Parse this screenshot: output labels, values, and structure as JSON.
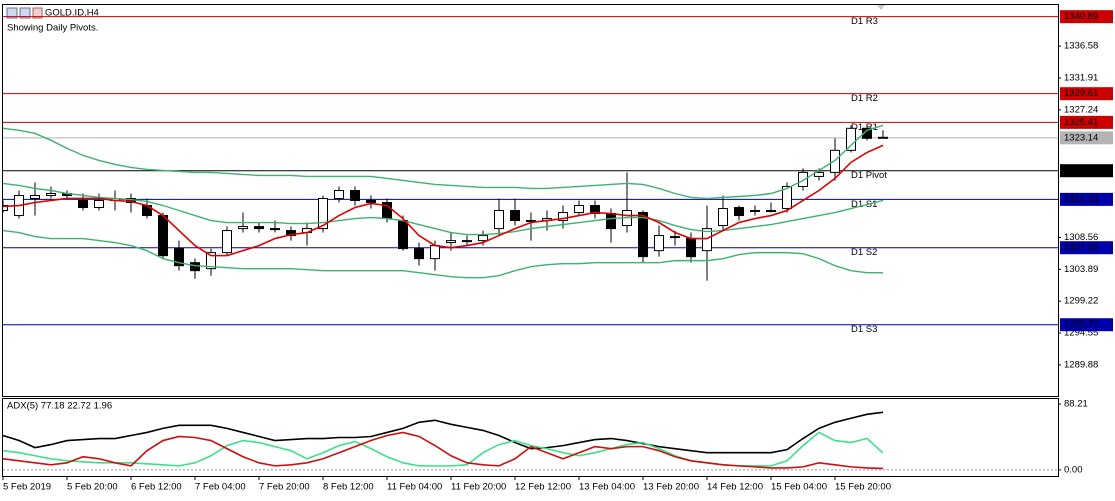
{
  "chart_data": [
    {
      "type": "candlestick",
      "title": "GOLD.ID,H4",
      "subtitle": "Showing Daily Pivots.",
      "categories": [
        "5 Feb 2019",
        null,
        null,
        null,
        "5 Feb 20:00",
        null,
        null,
        null,
        "6 Feb 12:00",
        null,
        null,
        null,
        "7 Feb 04:00",
        null,
        null,
        null,
        "7 Feb 20:00",
        null,
        null,
        null,
        "8 Feb 12:00",
        null,
        null,
        null,
        "11 Feb 04:00",
        null,
        null,
        null,
        "11 Feb 20:00",
        null,
        null,
        null,
        "12 Feb 12:00",
        null,
        null,
        null,
        "13 Feb 04:00",
        null,
        null,
        null,
        "13 Feb 20:00",
        null,
        null,
        null,
        "14 Feb 12:00",
        null,
        null,
        null,
        "15 Feb 04:00",
        null,
        null,
        null,
        "15 Feb 20:00",
        null,
        null,
        null
      ],
      "open": [
        1312.5,
        1311.76,
        1314.26,
        1314.7,
        1314.99,
        1313.97,
        1312.94,
        1313.97,
        1314.26,
        1313.23,
        1311.76,
        1306.92,
        1304.86,
        1303.98,
        1306.33,
        1309.85,
        1310.15,
        1309.85,
        1309.56,
        1309.27,
        1309.85,
        1314.26,
        1315.43,
        1313.97,
        1313.67,
        1311.03,
        1306.92,
        1305.45,
        1307.8,
        1308.09,
        1308.09,
        1309.85,
        1312.5,
        1311.03,
        1311.03,
        1311.03,
        1312.2,
        1313.23,
        1312.06,
        1310.3,
        1312.2,
        1306.62,
        1308.68,
        1308.39,
        1306.62,
        1310.3,
        1312.94,
        1312.5,
        1312.5,
        1312.79,
        1316.02,
        1317.49,
        1318.08,
        1321.31,
        1324.54,
        1323.22
      ],
      "high": [
        1313.97,
        1315.43,
        1316.61,
        1316.02,
        1315.43,
        1314.99,
        1314.99,
        1315.43,
        1314.99,
        1314.26,
        1312.2,
        1308.09,
        1305.45,
        1306.92,
        1310.15,
        1312.2,
        1310.74,
        1311.03,
        1310.15,
        1310.74,
        1314.7,
        1316.02,
        1316.02,
        1314.7,
        1314.26,
        1311.76,
        1307.8,
        1308.09,
        1309.27,
        1308.83,
        1309.56,
        1314.26,
        1314.26,
        1312.2,
        1312.5,
        1313.23,
        1313.97,
        1313.97,
        1312.79,
        1318.08,
        1312.5,
        1310.3,
        1309.56,
        1309.27,
        1313.23,
        1314.7,
        1313.23,
        1313.23,
        1313.67,
        1316.61,
        1318.67,
        1318.67,
        1323.07,
        1324.98,
        1324.98,
        1324.25
      ],
      "low": [
        1312.2,
        1311.32,
        1311.76,
        1314.26,
        1314.26,
        1312.5,
        1312.5,
        1312.5,
        1312.2,
        1311.32,
        1305.45,
        1303.69,
        1302.51,
        1302.95,
        1305.89,
        1309.27,
        1309.27,
        1309.27,
        1308.09,
        1307.36,
        1309.27,
        1313.67,
        1313.23,
        1312.79,
        1310.74,
        1306.62,
        1304.42,
        1303.69,
        1306.62,
        1307.36,
        1307.36,
        1308.83,
        1310.3,
        1308.09,
        1309.56,
        1309.85,
        1311.76,
        1311.32,
        1307.8,
        1309.27,
        1304.86,
        1305.74,
        1307.36,
        1304.86,
        1302.22,
        1309.56,
        1311.03,
        1311.76,
        1312.2,
        1312.2,
        1315.43,
        1316.9,
        1316.9,
        1321.01,
        1322.78,
        1323.07
      ],
      "close": [
        1313.23,
        1314.7,
        1314.7,
        1314.99,
        1314.7,
        1312.94,
        1313.97,
        1314.26,
        1313.67,
        1311.76,
        1305.89,
        1304.42,
        1303.69,
        1306.33,
        1309.56,
        1310.15,
        1309.85,
        1309.85,
        1308.83,
        1309.85,
        1314.26,
        1315.43,
        1313.97,
        1313.67,
        1311.32,
        1306.92,
        1305.45,
        1307.36,
        1308.09,
        1308.09,
        1308.83,
        1312.5,
        1311.03,
        1311.03,
        1311.32,
        1312.2,
        1313.23,
        1312.06,
        1309.85,
        1312.5,
        1305.74,
        1308.83,
        1308.68,
        1305.74,
        1309.85,
        1312.79,
        1311.76,
        1312.5,
        1312.5,
        1316.02,
        1318.08,
        1318.08,
        1321.31,
        1324.54,
        1323.07,
        1323.14
      ],
      "series": [
        {
          "color": "#3cb371",
          "values": [
            1324.54,
            1324.25,
            1323.8,
            1322.78,
            1321.6,
            1320.57,
            1319.84,
            1319.25,
            1318.81,
            1318.52,
            1318.37,
            1318.22,
            1318.08,
            1318.08,
            1317.93,
            1317.78,
            1317.64,
            1317.64,
            1317.64,
            1317.49,
            1317.49,
            1317.49,
            1317.49,
            1317.49,
            1317.2,
            1316.9,
            1316.61,
            1316.32,
            1316.17,
            1316.02,
            1315.88,
            1315.88,
            1315.88,
            1315.73,
            1315.73,
            1315.88,
            1316.02,
            1316.17,
            1316.32,
            1316.46,
            1316.32,
            1315.73,
            1314.99,
            1314.41,
            1314.26,
            1314.41,
            1314.55,
            1314.7,
            1314.99,
            1315.73,
            1316.9,
            1318.37,
            1319.84,
            1322.04,
            1324.25,
            1324.98
          ]
        },
        {
          "color": "#3cb371",
          "values": [
            1316.46,
            1316.17,
            1315.73,
            1315.43,
            1314.99,
            1314.7,
            1314.41,
            1314.26,
            1314.11,
            1313.82,
            1313.23,
            1312.5,
            1311.76,
            1311.03,
            1310.74,
            1310.74,
            1310.74,
            1310.74,
            1310.59,
            1310.59,
            1310.74,
            1311.03,
            1311.32,
            1311.47,
            1311.32,
            1311.03,
            1310.44,
            1309.85,
            1309.27,
            1308.97,
            1308.97,
            1309.12,
            1309.41,
            1309.85,
            1310.15,
            1310.44,
            1310.74,
            1311.03,
            1311.32,
            1311.47,
            1311.47,
            1311.03,
            1310.3,
            1309.71,
            1309.41,
            1309.56,
            1309.85,
            1310.15,
            1310.44,
            1310.88,
            1311.32,
            1311.76,
            1312.2,
            1312.79,
            1313.38,
            1313.97
          ]
        },
        {
          "color": "#3cb371",
          "values": [
            1309.56,
            1309.27,
            1308.68,
            1308.39,
            1308.39,
            1308.39,
            1308.09,
            1307.8,
            1307.36,
            1306.62,
            1305.45,
            1304.86,
            1304.42,
            1304.27,
            1304.13,
            1303.98,
            1303.98,
            1303.98,
            1303.98,
            1303.83,
            1303.69,
            1303.69,
            1303.69,
            1303.69,
            1303.69,
            1303.69,
            1303.39,
            1303.1,
            1302.81,
            1302.66,
            1302.66,
            1302.95,
            1303.69,
            1304.27,
            1304.57,
            1304.72,
            1304.72,
            1304.86,
            1304.86,
            1304.86,
            1304.86,
            1304.86,
            1305.16,
            1305.16,
            1305.16,
            1305.45,
            1306.04,
            1306.33,
            1306.33,
            1306.33,
            1306.18,
            1305.45,
            1304.42,
            1303.69,
            1303.39,
            1303.39
          ]
        },
        {
          "color": "#e00000",
          "values": [
            1313.09,
            1313.23,
            1313.67,
            1313.97,
            1314.26,
            1314.26,
            1314.26,
            1313.97,
            1313.82,
            1313.23,
            1311.76,
            1309.56,
            1307.36,
            1305.89,
            1305.89,
            1306.62,
            1307.36,
            1308.39,
            1308.97,
            1309.27,
            1310.3,
            1311.76,
            1312.94,
            1313.53,
            1313.23,
            1311.32,
            1308.83,
            1307.36,
            1307.06,
            1307.36,
            1307.8,
            1308.83,
            1309.85,
            1310.74,
            1311.03,
            1311.32,
            1311.76,
            1312.2,
            1312.06,
            1311.76,
            1311.76,
            1310.74,
            1309.27,
            1308.39,
            1308.39,
            1309.56,
            1310.74,
            1311.32,
            1311.76,
            1312.5,
            1313.97,
            1315.43,
            1317.2,
            1319.55,
            1321.01,
            1322.04
          ]
        }
      ],
      "levels": [
        {
          "name": "D1 R3",
          "value": 1340.89,
          "color": "#cc0000"
        },
        {
          "name": "D1 R2",
          "value": 1329.61,
          "color": "#cc0000"
        },
        {
          "name": "D1 R1",
          "value": 1325.41,
          "color": "#cc0000"
        },
        {
          "name": "D1 Pivot",
          "value": 1318.33,
          "color": "#000000"
        },
        {
          "name": "D1 S1",
          "value": 1314.13,
          "color": "#0000aa"
        },
        {
          "name": "D1 S2",
          "value": 1307.05,
          "color": "#0000aa"
        },
        {
          "name": "D1 S3",
          "value": 1295.77,
          "color": "#0000aa"
        }
      ],
      "last_price": 1323.14,
      "last_price_color": "#b4b4b4",
      "ylim": [
        1285.33,
        1342.6
      ],
      "yticks": [
        1336.58,
        1331.91,
        1327.24,
        1308.56,
        1303.89,
        1299.22,
        1294.55,
        1289.88
      ]
    },
    {
      "type": "line",
      "title": "ADX(5) 77.18 22.72 1.96",
      "series": [
        {
          "color": "#000000",
          "values": [
            46.14,
            39.35,
            29.85,
            33.93,
            39.35,
            40.71,
            42.07,
            42.07,
            46.14,
            50.21,
            55.64,
            59.71,
            59.71,
            59.71,
            55.64,
            50.21,
            44.78,
            39.35,
            40.71,
            42.07,
            42.07,
            43.42,
            43.42,
            44.78,
            50.21,
            55.64,
            63.78,
            66.49,
            61.07,
            56.99,
            52.92,
            46.14,
            36.64,
            28.5,
            29.85,
            32.57,
            36.64,
            40.71,
            42.07,
            39.35,
            35.28,
            31.21,
            28.5,
            25.78,
            23.07,
            23.07,
            23.07,
            23.07,
            23.07,
            27.14,
            42.07,
            55.64,
            63.78,
            69.21,
            74.5,
            77.18
          ]
        },
        {
          "color": "#3ee08a",
          "values": [
            25.78,
            23.07,
            19.0,
            14.93,
            12.21,
            10.86,
            9.5,
            9.5,
            9.5,
            8.14,
            6.79,
            5.43,
            9.5,
            19.0,
            32.57,
            39.35,
            36.64,
            31.21,
            25.78,
            14.93,
            23.07,
            32.57,
            38.0,
            28.5,
            17.64,
            9.5,
            5.43,
            5.43,
            5.43,
            6.79,
            23.07,
            33.93,
            39.35,
            32.57,
            28.5,
            23.07,
            19.0,
            23.07,
            28.5,
            33.93,
            36.64,
            28.5,
            19.0,
            12.21,
            9.5,
            6.79,
            5.43,
            5.43,
            5.43,
            12.21,
            32.57,
            50.21,
            39.35,
            36.64,
            42.07,
            22.72
          ]
        },
        {
          "color": "#cc1010",
          "values": [
            14.93,
            12.21,
            9.5,
            6.79,
            9.5,
            17.64,
            14.93,
            9.5,
            5.43,
            25.78,
            39.35,
            44.78,
            43.42,
            39.35,
            28.5,
            17.64,
            9.5,
            5.43,
            6.79,
            9.5,
            14.93,
            23.07,
            31.21,
            39.35,
            46.14,
            50.21,
            44.78,
            32.57,
            19.0,
            9.5,
            6.79,
            5.43,
            14.93,
            31.21,
            23.07,
            14.93,
            23.07,
            31.21,
            28.5,
            31.21,
            31.21,
            25.78,
            17.64,
            12.21,
            9.5,
            6.79,
            5.43,
            4.07,
            2.71,
            2.71,
            4.07,
            9.5,
            6.79,
            4.07,
            2.71,
            1.96
          ]
        }
      ],
      "ylim": [
        -8.14,
        95.0
      ],
      "yticks": [
        88.21,
        {
          "value": 0,
          "label": "0.00"
        }
      ]
    }
  ]
}
